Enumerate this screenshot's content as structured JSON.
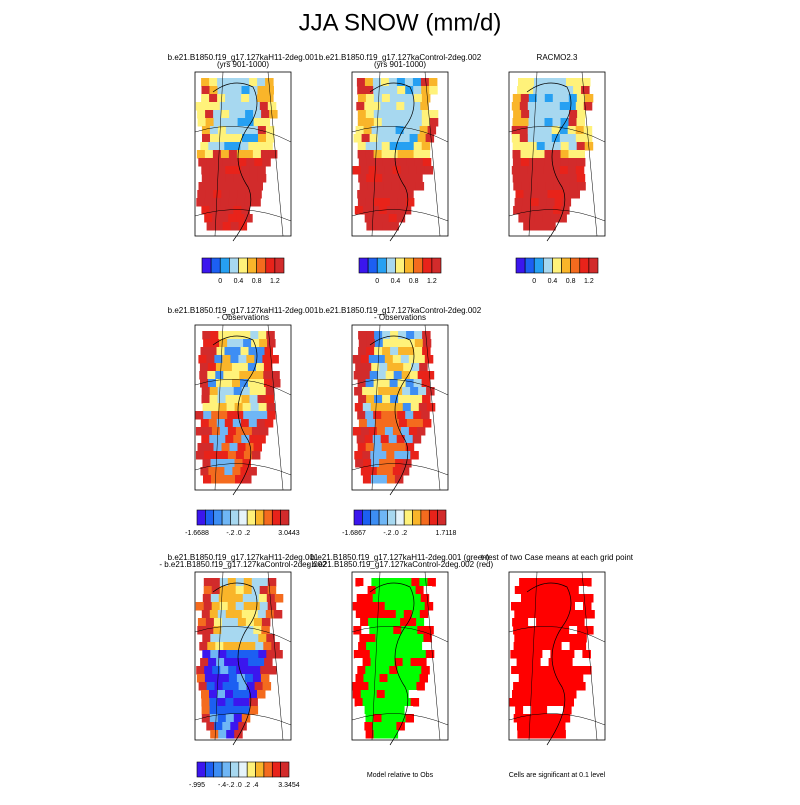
{
  "title": "JJA SNOW (mm/d)",
  "panels": [
    {
      "title_lines": [
        "b.e21.B1850.f19_g17.127kaH11-2deg.001",
        "(yrs 901-1000)"
      ],
      "colorbar_labels": [
        "0",
        "0.4",
        "0.8",
        "1.2"
      ]
    },
    {
      "title_lines": [
        "b.e21.B1850.f19_g17.127kaControl-2deg.002",
        "(yrs 901-1000)"
      ],
      "colorbar_labels": [
        "0",
        "0.4",
        "0.8",
        "1.2"
      ]
    },
    {
      "title_lines": [
        "RACMO2.3"
      ],
      "colorbar_labels": [
        "0",
        "0.4",
        "0.8",
        "1.2"
      ]
    },
    {
      "title_lines": [
        "b.e21.B1850.f19_g17.127kaH11-2deg.001",
        "- Observations"
      ],
      "colorbar_labels": [
        "-1.6688",
        "-.2",
        ".0",
        ".2",
        "3.0443"
      ]
    },
    {
      "title_lines": [
        "b.e21.B1850.f19_g17.127kaControl-2deg.002",
        "- Observations"
      ],
      "colorbar_labels": [
        "-1.6867",
        "-.2",
        ".0",
        ".2",
        "1.7118"
      ]
    },
    {
      "title_lines": [
        "b.e21.B1850.f19_g17.127kaH11-2deg.001",
        "- b.e21.B1850.f19_g17.127kaControl-2deg.002"
      ],
      "colorbar_labels": [
        "-.995",
        "-.4",
        "-.2",
        ".0",
        ".2",
        ".4",
        "3.3454"
      ]
    },
    {
      "title_lines": [
        "b.e21.B1850.f19_g17.127kaH11-2deg.001 (green)",
        "- b.e21.B1850.f19_g17.127kaControl-2deg.002 (red)"
      ],
      "note": "Model relative to Obs"
    },
    {
      "title_lines": [
        "t-test of two Case means at each grid point"
      ],
      "note": "Cells are significant at 0.1 level"
    }
  ]
}
